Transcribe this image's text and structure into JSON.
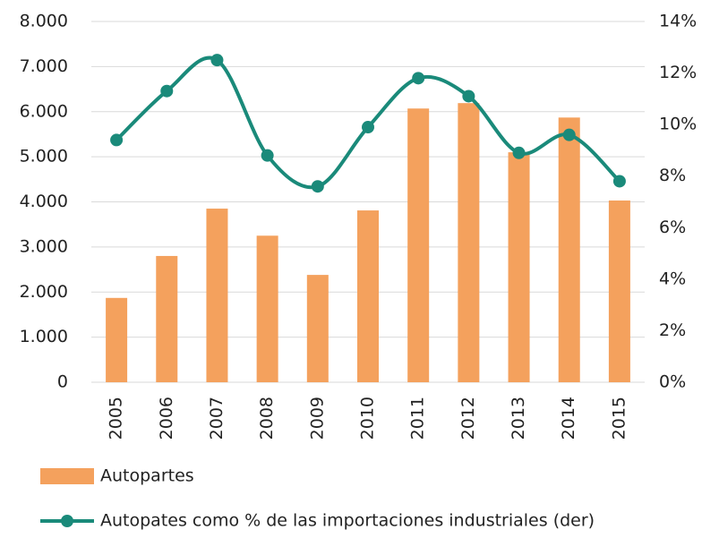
{
  "chart_data": {
    "type": "combo",
    "categories": [
      "2005",
      "2006",
      "2007",
      "2008",
      "2009",
      "2010",
      "2011",
      "2012",
      "2013",
      "2014",
      "2015"
    ],
    "series": [
      {
        "name": "Autopartes",
        "type": "bar",
        "color": "#f4a15d",
        "values": [
          1870,
          2800,
          3850,
          3250,
          2380,
          3810,
          6070,
          6190,
          5100,
          5870,
          4030
        ]
      },
      {
        "name": "Autopates como % de las importaciones industriales (der)",
        "type": "line",
        "axis": "y2",
        "color": "#1a8a7a",
        "values": [
          9.4,
          11.3,
          12.5,
          8.8,
          7.6,
          9.9,
          11.8,
          11.1,
          8.9,
          9.6,
          7.8
        ]
      }
    ],
    "ylim": [
      0,
      8000
    ],
    "yticks": [
      0,
      {
        "value": 1000,
        "label": "1.000"
      },
      {
        "value": 2000,
        "label": "2.000"
      },
      {
        "value": 3000,
        "label": "3.000"
      },
      {
        "value": 4000,
        "label": "4.000"
      },
      {
        "value": 5000,
        "label": "5.000"
      },
      {
        "value": 6000,
        "label": "6.000"
      },
      {
        "value": 7000,
        "label": "7.000"
      },
      {
        "value": 8000,
        "label": "8.000"
      }
    ],
    "y2lim": [
      0,
      14
    ],
    "y2ticks": [
      {
        "value": 0,
        "label": "0%"
      },
      {
        "value": 2,
        "label": "2%"
      },
      {
        "value": 4,
        "label": "4%"
      },
      {
        "value": 6,
        "label": "6%"
      },
      {
        "value": 8,
        "label": "8%"
      },
      {
        "value": 10,
        "label": "10%"
      },
      {
        "value": 12,
        "label": "12%"
      },
      {
        "value": 14,
        "label": "14%"
      }
    ],
    "grid": true
  }
}
